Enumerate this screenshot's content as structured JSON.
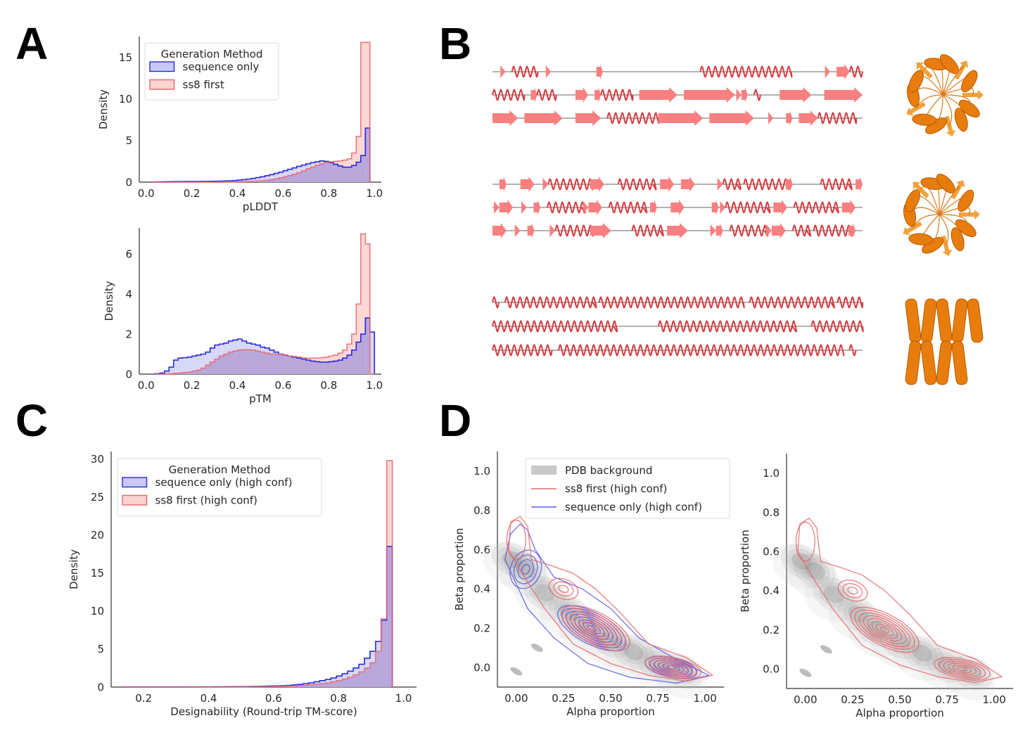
{
  "panel_labels": [
    "A",
    "B",
    "C",
    "D"
  ],
  "colors": {
    "seq_only_line": "#2b2bd6",
    "seq_only_fill": "#c9c9f5",
    "ss8_line": "#e8676b",
    "ss8_fill": "#fbd3d1",
    "overlap_fill": "#b4a0d6",
    "pdb_background": "#bdbdbd",
    "structure_orange": "#e87d0d",
    "ss_strand": "#fa7f80",
    "ss_helix": "#d63b3f",
    "ss_coil": "#999999"
  },
  "chart_data": [
    {
      "id": "A-top",
      "type": "histogram-step",
      "title": "",
      "xlabel": "pLDDT",
      "ylabel": "Density",
      "xlim": [
        -0.03,
        1.03
      ],
      "ylim": [
        0,
        17.5
      ],
      "xticks": [
        "0.0",
        "0.2",
        "0.4",
        "0.6",
        "0.8",
        "1.0"
      ],
      "xtick_values": [
        0.0,
        0.2,
        0.4,
        0.6,
        0.8,
        1.0
      ],
      "yticks": [
        "0",
        "5",
        "10",
        "15"
      ],
      "ytick_values": [
        0,
        5,
        10,
        15
      ],
      "legend": {
        "title": "Generation Method",
        "placement": "upper-left",
        "entries": [
          "sequence only",
          "ss8 first"
        ]
      },
      "bin_start": 0.02,
      "bin_width": 0.02,
      "series": [
        {
          "name": "sequence only",
          "values": [
            0.02,
            0.03,
            0.04,
            0.05,
            0.06,
            0.07,
            0.07,
            0.08,
            0.08,
            0.08,
            0.08,
            0.09,
            0.09,
            0.1,
            0.11,
            0.12,
            0.14,
            0.17,
            0.2,
            0.25,
            0.3,
            0.37,
            0.45,
            0.55,
            0.65,
            0.78,
            0.9,
            1.05,
            1.2,
            1.38,
            1.55,
            1.72,
            1.9,
            2.05,
            2.2,
            2.35,
            2.45,
            2.55,
            2.5,
            2.35,
            2.15,
            1.95,
            1.8,
            1.8,
            2.0,
            2.4,
            3.2,
            6.5
          ]
        },
        {
          "name": "ss8 first",
          "values": [
            0.0,
            0.0,
            0.0,
            0.0,
            0.0,
            0.01,
            0.01,
            0.01,
            0.01,
            0.01,
            0.01,
            0.01,
            0.01,
            0.01,
            0.02,
            0.02,
            0.03,
            0.03,
            0.04,
            0.05,
            0.06,
            0.08,
            0.1,
            0.13,
            0.17,
            0.22,
            0.3,
            0.4,
            0.52,
            0.65,
            0.8,
            0.95,
            1.15,
            1.35,
            1.6,
            1.8,
            2.0,
            2.2,
            2.35,
            2.45,
            2.5,
            2.55,
            2.65,
            2.8,
            3.5,
            5.5,
            16.8,
            16.8
          ]
        }
      ]
    },
    {
      "id": "A-bottom",
      "type": "histogram-step",
      "title": "",
      "xlabel": "pTM",
      "ylabel": "Density",
      "xlim": [
        -0.03,
        1.03
      ],
      "ylim": [
        0,
        7.3
      ],
      "xticks": [
        "0.0",
        "0.2",
        "0.4",
        "0.6",
        "0.8",
        "1.0"
      ],
      "xtick_values": [
        0.0,
        0.2,
        0.4,
        0.6,
        0.8,
        1.0
      ],
      "yticks": [
        "0",
        "2",
        "4",
        "6"
      ],
      "ytick_values": [
        0,
        2,
        4,
        6
      ],
      "bin_start": 0.04,
      "bin_width": 0.02,
      "series": [
        {
          "name": "sequence only",
          "values": [
            0.02,
            0.05,
            0.15,
            0.35,
            0.7,
            0.8,
            0.82,
            0.85,
            0.9,
            0.95,
            1.0,
            1.1,
            1.3,
            1.45,
            1.5,
            1.55,
            1.65,
            1.7,
            1.75,
            1.65,
            1.55,
            1.5,
            1.45,
            1.35,
            1.3,
            1.2,
            1.1,
            1.0,
            0.95,
            0.9,
            0.85,
            0.8,
            0.75,
            0.7,
            0.65,
            0.62,
            0.6,
            0.6,
            0.62,
            0.65,
            0.7,
            0.8,
            0.95,
            1.2,
            1.6,
            2.0,
            2.8,
            2.1
          ]
        },
        {
          "name": "ss8 first",
          "values": [
            0.0,
            0.0,
            0.01,
            0.02,
            0.04,
            0.06,
            0.08,
            0.1,
            0.15,
            0.2,
            0.3,
            0.45,
            0.6,
            0.75,
            0.9,
            1.0,
            1.1,
            1.15,
            1.2,
            1.22,
            1.22,
            1.2,
            1.15,
            1.1,
            1.05,
            1.0,
            1.0,
            1.0,
            0.95,
            0.9,
            0.88,
            0.85,
            0.82,
            0.8,
            0.8,
            0.8,
            0.82,
            0.85,
            0.9,
            0.95,
            1.05,
            1.2,
            1.5,
            2.0,
            3.5,
            7.0,
            6.5,
            0.0
          ]
        }
      ]
    },
    {
      "id": "C",
      "type": "histogram-step",
      "title": "",
      "xlabel": "Designability (Round-trip TM-score)",
      "ylabel": "Density",
      "xlim": [
        0.1,
        1.04
      ],
      "ylim": [
        0,
        31
      ],
      "xticks": [
        "0.2",
        "0.4",
        "0.6",
        "0.8",
        "1.0"
      ],
      "xtick_values": [
        0.2,
        0.4,
        0.6,
        0.8,
        1.0
      ],
      "yticks": [
        "0",
        "5",
        "10",
        "15",
        "20",
        "25",
        "30"
      ],
      "ytick_values": [
        0,
        5,
        10,
        15,
        20,
        25,
        30
      ],
      "legend": {
        "title": "Generation Method",
        "placement": "upper-left",
        "entries": [
          "sequence only (high conf)",
          "ss8 first (high conf)"
        ]
      },
      "bin_start": 0.14,
      "bin_width": 0.0172,
      "series": [
        {
          "name": "sequence only (high conf)",
          "values": [
            0.02,
            0.02,
            0.02,
            0.02,
            0.02,
            0.02,
            0.02,
            0.02,
            0.02,
            0.02,
            0.02,
            0.02,
            0.02,
            0.03,
            0.03,
            0.03,
            0.04,
            0.04,
            0.05,
            0.05,
            0.06,
            0.07,
            0.08,
            0.09,
            0.1,
            0.12,
            0.14,
            0.16,
            0.18,
            0.22,
            0.28,
            0.35,
            0.45,
            0.55,
            0.7,
            0.85,
            1.0,
            1.2,
            1.45,
            1.75,
            2.1,
            2.5,
            3.0,
            3.8,
            4.7,
            6.0,
            8.8,
            18.5
          ]
        },
        {
          "name": "ss8 first (high conf)",
          "values": [
            0.0,
            0.0,
            0.0,
            0.0,
            0.0,
            0.0,
            0.0,
            0.0,
            0.0,
            0.0,
            0.0,
            0.0,
            0.01,
            0.01,
            0.01,
            0.01,
            0.01,
            0.02,
            0.02,
            0.02,
            0.03,
            0.03,
            0.04,
            0.05,
            0.05,
            0.06,
            0.07,
            0.08,
            0.1,
            0.12,
            0.15,
            0.2,
            0.25,
            0.3,
            0.38,
            0.45,
            0.55,
            0.7,
            0.85,
            1.05,
            1.3,
            1.6,
            2.0,
            2.5,
            3.2,
            4.7,
            9.0,
            29.8
          ]
        }
      ]
    },
    {
      "id": "D-left",
      "type": "kde-contour",
      "title": "",
      "xlabel": "Alpha proportion",
      "ylabel": "Beta proportion",
      "xlim": [
        -0.1,
        1.1
      ],
      "ylim": [
        -0.1,
        1.1
      ],
      "xticks": [
        "0.00",
        "0.25",
        "0.50",
        "0.75",
        "1.00"
      ],
      "xtick_values": [
        0.0,
        0.25,
        0.5,
        0.75,
        1.0
      ],
      "yticks": [
        "0.0",
        "0.2",
        "0.4",
        "0.6",
        "0.8",
        "1.0"
      ],
      "ytick_values": [
        0.0,
        0.2,
        0.4,
        0.6,
        0.8,
        1.0
      ],
      "legend": {
        "placement": "upper-right",
        "entries": [
          "PDB background",
          "ss8 first (high conf)",
          "sequence only (high conf)"
        ]
      },
      "modes": {
        "PDB background": [
          [
            0.05,
            0.5
          ],
          [
            0.38,
            0.2
          ],
          [
            0.8,
            0.0
          ]
        ],
        "ss8 first (high conf)": [
          [
            0.0,
            0.65
          ],
          [
            0.25,
            0.4
          ],
          [
            0.42,
            0.2
          ],
          [
            0.83,
            0.0
          ]
        ],
        "sequence only (high conf)": [
          [
            0.05,
            0.5
          ],
          [
            0.4,
            0.2
          ],
          [
            0.82,
            0.0
          ]
        ]
      }
    },
    {
      "id": "D-right",
      "type": "kde-contour",
      "title": "",
      "xlabel": "Alpha proportion",
      "ylabel": "Beta proportion",
      "xlim": [
        -0.1,
        1.1
      ],
      "ylim": [
        -0.1,
        1.1
      ],
      "xticks": [
        "0.00",
        "0.25",
        "0.50",
        "0.75",
        "1.00"
      ],
      "xtick_values": [
        0.0,
        0.25,
        0.5,
        0.75,
        1.0
      ],
      "yticks": [
        "0.0",
        "0.2",
        "0.4",
        "0.6",
        "0.8",
        "1.0"
      ],
      "ytick_values": [
        0.0,
        0.2,
        0.4,
        0.6,
        0.8,
        1.0
      ],
      "modes": {
        "PDB background": [
          [
            0.05,
            0.5
          ],
          [
            0.38,
            0.2
          ],
          [
            0.8,
            0.0
          ]
        ],
        "ss8 first (high conf)": [
          [
            0.0,
            0.65
          ],
          [
            0.25,
            0.4
          ],
          [
            0.42,
            0.2
          ],
          [
            0.83,
            0.0
          ]
        ]
      }
    }
  ],
  "panel_b": {
    "groups": [
      {
        "rows": [
          "CSCHHHHCSCCCCCCCECCCCCCCCCCCCCCCHHHHHHHHHHHHHHCCCCCSCEEHH",
          "HHHHHCEHHHCCCEECEHHHHHCEEEEEECEEEEEEEESECHCCCEEEEECCEEEEEE",
          "EEEECEEEEEECCEEEECHHHHHHHHEEEEEEECEEEEEEECCSCCECEEEHHHHHHC"
        ]
      },
      {
        "rows": [
          "CECCEECSHHHHHHEECCHHHHHCEECEECCCSHHCHHHHHHECCCCHHHHCE",
          "SEECSCECHHHHHSEECHHHHHCECCEECCCCESHHHHHHCEECHHHHHHCEEC",
          "EECSCECCSHHHHHEEECCCHHHHCEEECCCSECHHHHHSEECHHCHHHHHEC"
        ]
      },
      {
        "rows": [
          "HCHHHHHHHHHHHHHHCHHHHHHHHHHHHHHHHHHHHHHHCHHHHHHHHHHHHHCHHHH",
          "HHHHHHHHHHHHHHHHHHHCCCCCCCHHHHHHHHHHHHHHHHHHHHHCCCHHHHHHHH",
          "HHHHHHHHHCHHHHHHHHHHHHHHHHHHHHHHHHHHHHHHHHHHHHHHHHHHHCHC"
        ]
      }
    ],
    "legend_codes": {
      "H": "helix",
      "E": "strand",
      "S": "short strand",
      "C": "coil"
    },
    "structure_icons": [
      "mixed alpha/beta two-domain fold",
      "mixed alpha/beta two-domain fold",
      "all-alpha helical bundle"
    ]
  }
}
